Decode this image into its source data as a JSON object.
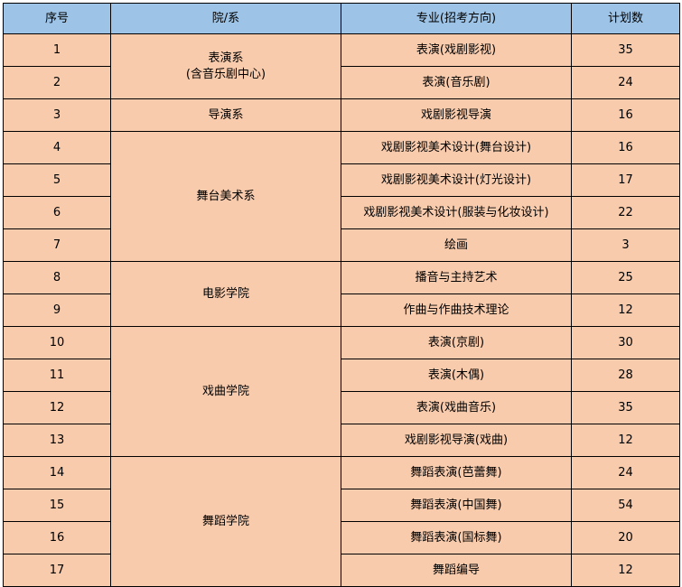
{
  "colors": {
    "header_bg": "#9DC3E6",
    "body_bg": "#F8CBAD"
  },
  "headers": [
    "序号",
    "院/系",
    "专业(招考方向)",
    "计划数"
  ],
  "rows": [
    {
      "no": "1",
      "dept": "表演系\n(含音乐剧中心)",
      "span": 2,
      "major": "表演(戏剧影视)",
      "plan": "35"
    },
    {
      "no": "2",
      "major": "表演(音乐剧)",
      "plan": "24"
    },
    {
      "no": "3",
      "dept": "导演系",
      "span": 1,
      "major": "戏剧影视导演",
      "plan": "16"
    },
    {
      "no": "4",
      "dept": "舞台美术系",
      "span": 4,
      "major": "戏剧影视美术设计(舞台设计)",
      "plan": "16"
    },
    {
      "no": "5",
      "major": "戏剧影视美术设计(灯光设计)",
      "plan": "17"
    },
    {
      "no": "6",
      "major": "戏剧影视美术设计(服装与化妆设计)",
      "plan": "22"
    },
    {
      "no": "7",
      "major": "绘画",
      "plan": "3"
    },
    {
      "no": "8",
      "dept": "电影学院",
      "span": 2,
      "major": "播音与主持艺术",
      "plan": "25"
    },
    {
      "no": "9",
      "major": "作曲与作曲技术理论",
      "plan": "12"
    },
    {
      "no": "10",
      "dept": "戏曲学院",
      "span": 4,
      "major": "表演(京剧)",
      "plan": "30"
    },
    {
      "no": "11",
      "major": "表演(木偶)",
      "plan": "28"
    },
    {
      "no": "12",
      "major": "表演(戏曲音乐)",
      "plan": "35"
    },
    {
      "no": "13",
      "major": "戏剧影视导演(戏曲)",
      "plan": "12"
    },
    {
      "no": "14",
      "dept": "舞蹈学院",
      "span": 4,
      "major": "舞蹈表演(芭蕾舞)",
      "plan": "24"
    },
    {
      "no": "15",
      "major": "舞蹈表演(中国舞)",
      "plan": "54"
    },
    {
      "no": "16",
      "major": "舞蹈表演(国标舞)",
      "plan": "20"
    },
    {
      "no": "17",
      "major": "舞蹈编导",
      "plan": "12"
    }
  ]
}
